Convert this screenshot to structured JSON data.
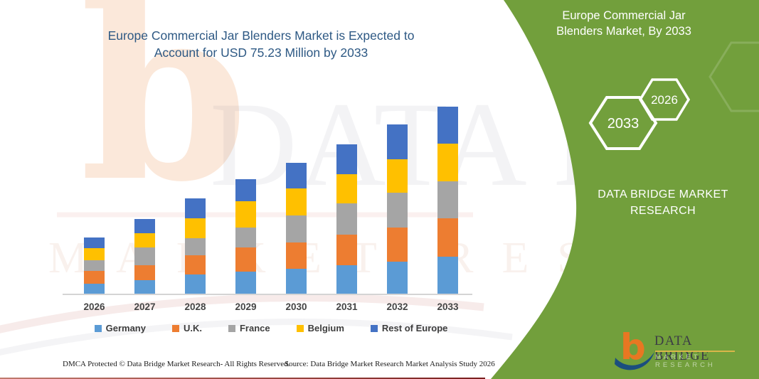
{
  "title": {
    "line1": "Europe Commercial Jar Blenders Market is Expected to",
    "line2": "Account for USD 75.23 Million by 2033",
    "color": "#2E5984"
  },
  "side_panel": {
    "bg_color": "#729F3C",
    "heading_line1": "Europe Commercial Jar",
    "heading_line2": "Blenders Market, By 2033",
    "hexagon_large_label": "2033",
    "hexagon_small_label": "2026",
    "brand_line1": "DATA BRIDGE MARKET",
    "brand_line2": "RESEARCH"
  },
  "logo": {
    "glyph": "b",
    "name": "DATA BRIDGE",
    "tagline": "MARKET RESEARCH",
    "orange": "#E87722",
    "navy": "#1B4E7E",
    "underline_color": "#D9B64A"
  },
  "watermarks": {
    "letter": "b",
    "text": "DATA BRIDGE",
    "subtext": "MARKET RESEARCH"
  },
  "footer": {
    "dmca": "DMCA Protected © Data Bridge Market Research-  All Rights Reserved.",
    "source": "Source: Data Bridge Market Research  Market Analysis Study 2026"
  },
  "chart_data": {
    "type": "bar",
    "stacked": true,
    "title": "Europe Commercial Jar Blenders Market is Expected to Account for USD 75.23 Million by 2033",
    "unit": "USD Million",
    "categories": [
      "2026",
      "2027",
      "2028",
      "2029",
      "2030",
      "2031",
      "2032",
      "2033"
    ],
    "series": [
      {
        "name": "Germany",
        "color": "#5B9BD5",
        "values": [
          4.4,
          5.8,
          8.1,
          9.1,
          10.2,
          11.6,
          13.2,
          15.2
        ]
      },
      {
        "name": "U.K.",
        "color": "#ED7D31",
        "values": [
          5.0,
          6.0,
          7.7,
          9.6,
          10.6,
          12.4,
          13.6,
          15.2
        ]
      },
      {
        "name": "France",
        "color": "#A5A5A5",
        "values": [
          4.4,
          6.9,
          6.7,
          8.1,
          10.8,
          12.4,
          13.9,
          15.0
        ]
      },
      {
        "name": "Belgium",
        "color": "#FFC000",
        "values": [
          4.7,
          5.7,
          8.1,
          10.5,
          10.7,
          11.7,
          13.4,
          14.9
        ]
      },
      {
        "name": "Rest of Europe",
        "color": "#4472C4",
        "values": [
          4.2,
          5.8,
          7.7,
          8.8,
          10.4,
          12.1,
          13.9,
          14.93
        ]
      }
    ],
    "stack_order_bottom_to_top": [
      "Germany",
      "U.K.",
      "France",
      "Belgium",
      "Rest of Europe"
    ],
    "totals": [
      22.7,
      30.2,
      38.3,
      46.1,
      52.7,
      60.2,
      68.0,
      75.23
    ],
    "xlabel": "",
    "ylabel": "",
    "ylim": [
      0,
      78
    ],
    "grid": false,
    "y_axis_shown": false,
    "legend_position": "bottom"
  }
}
